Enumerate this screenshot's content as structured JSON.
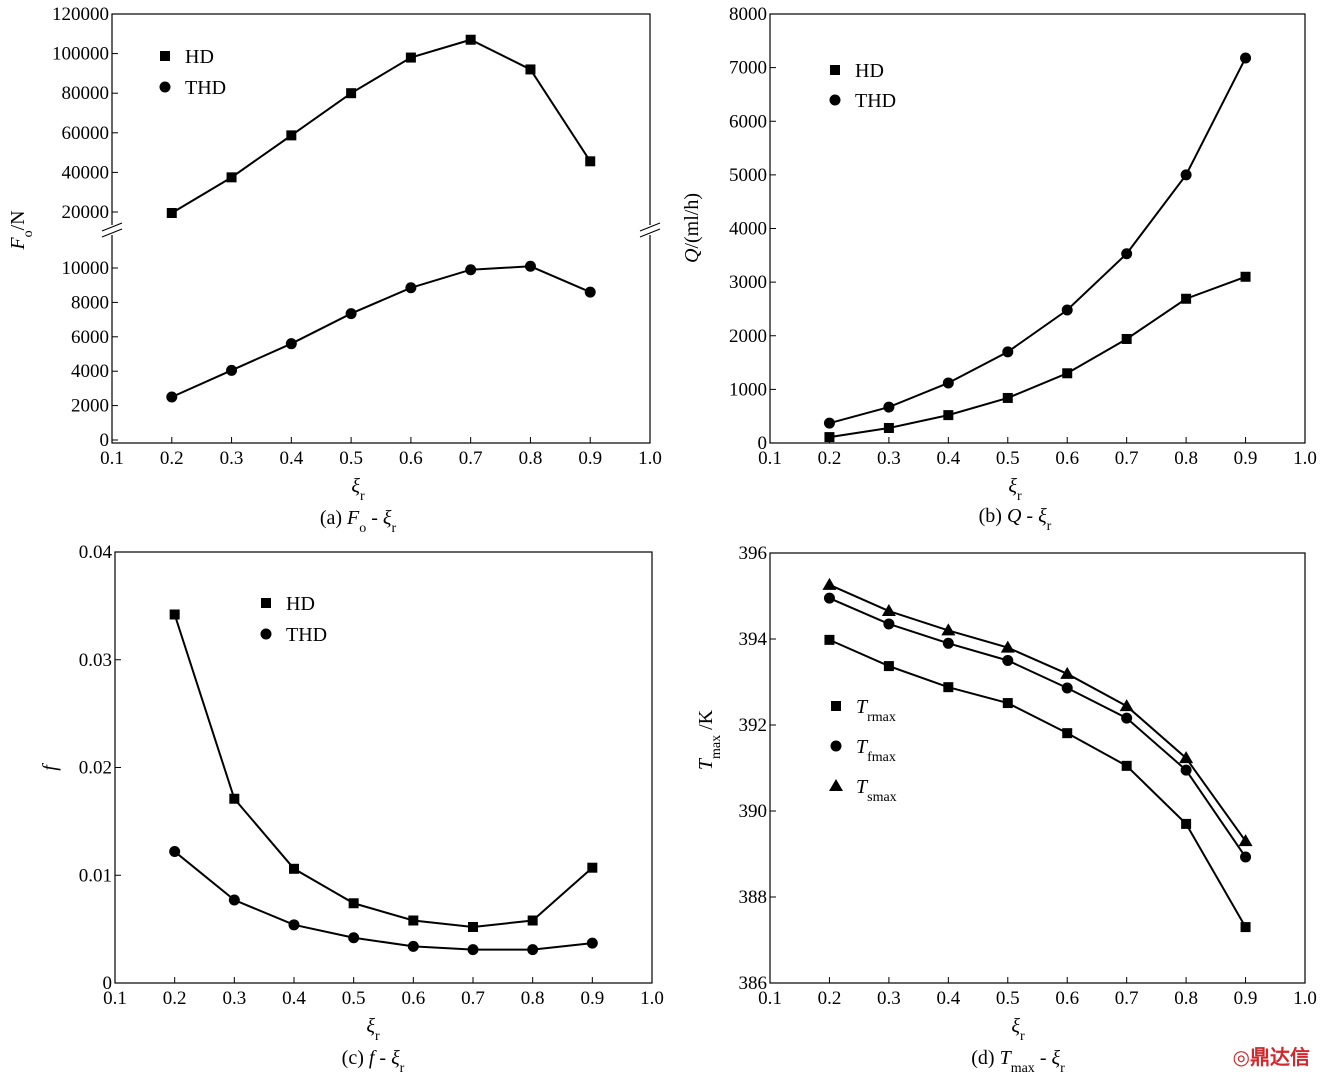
{
  "chart_data": [
    {
      "type": "line",
      "panel": "a",
      "caption": {
        "prefix": "(a) ",
        "y": "F",
        "ysub": "o",
        "sep": " - ",
        "x": "ξ",
        "xsub": "r"
      },
      "xlabel": {
        "main": "ξ",
        "sub": "r"
      },
      "ylabel": {
        "main": "F",
        "sub": "o",
        "rest": "/N"
      },
      "x": [
        0.2,
        0.3,
        0.4,
        0.5,
        0.6,
        0.7,
        0.8,
        0.9
      ],
      "xlim": [
        0.1,
        1.0
      ],
      "xticks": [
        "0.1",
        "0.2",
        "0.3",
        "0.4",
        "0.5",
        "0.6",
        "0.7",
        "0.8",
        "0.9",
        "1.0"
      ],
      "y_axis_break": true,
      "yticks_upper": [
        20000,
        40000,
        60000,
        80000,
        100000,
        120000
      ],
      "yticks_lower": [
        0,
        2000,
        4000,
        6000,
        8000,
        10000
      ],
      "series": [
        {
          "name": "HD",
          "marker": "square",
          "values": [
            19500,
            37500,
            58700,
            80000,
            98000,
            107000,
            92000,
            45600
          ]
        },
        {
          "name": "THD",
          "marker": "circle",
          "values": [
            2500,
            4050,
            5600,
            7350,
            8850,
            9900,
            10100,
            8600
          ]
        }
      ],
      "legend": "top-left"
    },
    {
      "type": "line",
      "panel": "b",
      "caption": {
        "prefix": "(b) ",
        "y": "Q",
        "ysub": "",
        "sep": " - ",
        "x": "ξ",
        "xsub": "r"
      },
      "xlabel": {
        "main": "ξ",
        "sub": "r"
      },
      "ylabel": {
        "main": "Q",
        "sub": "",
        "rest": "/(ml/h)"
      },
      "x": [
        0.2,
        0.3,
        0.4,
        0.5,
        0.6,
        0.7,
        0.8,
        0.9
      ],
      "xlim": [
        0.1,
        1.0
      ],
      "ylim": [
        0,
        8000
      ],
      "xticks": [
        "0.1",
        "0.2",
        "0.3",
        "0.4",
        "0.5",
        "0.6",
        "0.7",
        "0.8",
        "0.9",
        "1.0"
      ],
      "yticks": [
        0,
        1000,
        2000,
        3000,
        4000,
        5000,
        6000,
        7000,
        8000
      ],
      "series": [
        {
          "name": "HD",
          "marker": "square",
          "values": [
            110,
            280,
            520,
            840,
            1300,
            1940,
            2690,
            3100
          ]
        },
        {
          "name": "THD",
          "marker": "circle",
          "values": [
            370,
            670,
            1120,
            1700,
            2480,
            3530,
            5000,
            7180
          ]
        }
      ],
      "legend": "top-left"
    },
    {
      "type": "line",
      "panel": "c",
      "caption": {
        "prefix": "(c) ",
        "y": "f",
        "ysub": "",
        "sep": " - ",
        "x": "ξ",
        "xsub": "r"
      },
      "xlabel": {
        "main": "ξ",
        "sub": "r"
      },
      "ylabel": {
        "main": "f",
        "sub": "",
        "rest": ""
      },
      "x": [
        0.2,
        0.3,
        0.4,
        0.5,
        0.6,
        0.7,
        0.8,
        0.9
      ],
      "xlim": [
        0.1,
        1.0
      ],
      "ylim": [
        0,
        0.04
      ],
      "xticks": [
        "0.1",
        "0.2",
        "0.3",
        "0.4",
        "0.5",
        "0.6",
        "0.7",
        "0.8",
        "0.9",
        "1.0"
      ],
      "yticks": [
        "0",
        "0.01",
        "0.02",
        "0.03",
        "0.04"
      ],
      "series": [
        {
          "name": "HD",
          "marker": "square",
          "values": [
            0.0342,
            0.0171,
            0.0106,
            0.0074,
            0.0058,
            0.0052,
            0.0058,
            0.0107
          ]
        },
        {
          "name": "THD",
          "marker": "circle",
          "values": [
            0.0122,
            0.0077,
            0.0054,
            0.0042,
            0.0034,
            0.0031,
            0.0031,
            0.0037
          ]
        }
      ],
      "legend": "top-center"
    },
    {
      "type": "line",
      "panel": "d",
      "caption": {
        "prefix": "(d) ",
        "y": "T",
        "ysub": "max",
        "sep": " - ",
        "x": "ξ",
        "xsub": "r"
      },
      "xlabel": {
        "main": "ξ",
        "sub": "r"
      },
      "ylabel": {
        "main": "T",
        "sub": "max",
        "rest": " /K"
      },
      "x": [
        0.2,
        0.3,
        0.4,
        0.5,
        0.6,
        0.7,
        0.8,
        0.9
      ],
      "xlim": [
        0.1,
        1.0
      ],
      "ylim": [
        386,
        396
      ],
      "xticks": [
        "0.1",
        "0.2",
        "0.3",
        "0.4",
        "0.5",
        "0.6",
        "0.7",
        "0.8",
        "0.9",
        "1.0"
      ],
      "yticks": [
        386,
        388,
        390,
        392,
        394,
        396
      ],
      "series": [
        {
          "name": "T",
          "name_sub": "rmax",
          "marker": "square",
          "values": [
            393.98,
            393.37,
            392.88,
            392.51,
            391.81,
            391.05,
            389.7,
            387.3
          ]
        },
        {
          "name": "T",
          "name_sub": "fmax",
          "marker": "circle",
          "values": [
            394.95,
            394.35,
            393.9,
            393.5,
            392.86,
            392.16,
            390.95,
            388.93
          ]
        },
        {
          "name": "T",
          "name_sub": "smax",
          "marker": "triangle",
          "values": [
            395.26,
            394.65,
            394.2,
            393.8,
            393.19,
            392.44,
            391.23,
            389.3
          ]
        }
      ],
      "legend": "center-left"
    }
  ],
  "watermark": {
    "text": "鼎达信",
    "color": "#d4262b"
  }
}
